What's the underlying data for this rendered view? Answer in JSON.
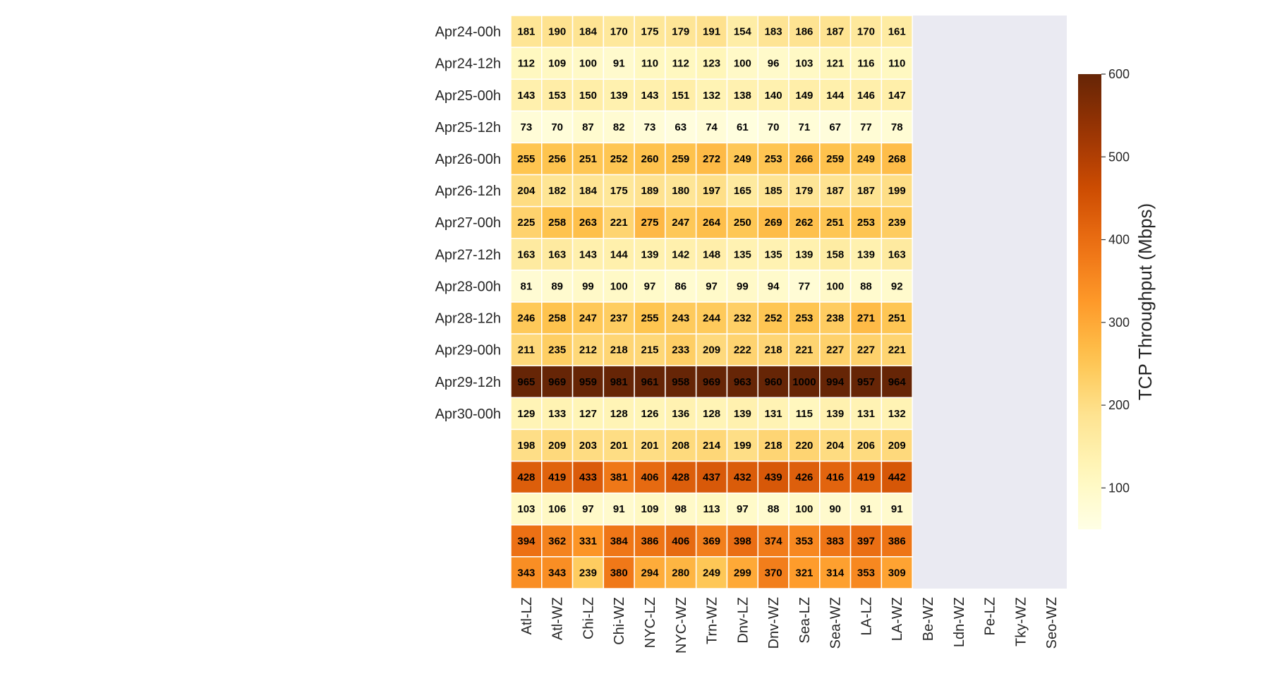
{
  "chart_data": {
    "type": "heatmap",
    "columns": [
      "Atl-LZ",
      "Atl-WZ",
      "Chi-LZ",
      "Chi-WZ",
      "NYC-LZ",
      "NYC-WZ",
      "Trn-WZ",
      "Dnv-LZ",
      "Dnv-WZ",
      "Sea-LZ",
      "Sea-WZ",
      "LA-LZ",
      "LA-WZ",
      "Be-WZ",
      "Ldn-WZ",
      "Pe-LZ",
      "Tky-WZ",
      "Seo-WZ"
    ],
    "row_labels": [
      "Apr24-00h",
      "Apr24-12h",
      "Apr25-00h",
      "Apr25-12h",
      "Apr26-00h",
      "Apr26-12h",
      "Apr27-00h",
      "Apr27-12h",
      "Apr28-00h",
      "Apr28-12h",
      "Apr29-00h",
      "Apr29-12h",
      "Apr30-00h",
      "",
      "",
      "",
      "",
      ""
    ],
    "values": [
      [
        181,
        190,
        184,
        170,
        175,
        179,
        191,
        154,
        183,
        186,
        187,
        170,
        161,
        null,
        null,
        null,
        null,
        null
      ],
      [
        112,
        109,
        100,
        91,
        110,
        112,
        123,
        100,
        96,
        103,
        121,
        116,
        110,
        null,
        null,
        null,
        null,
        null
      ],
      [
        143,
        153,
        150,
        139,
        143,
        151,
        132,
        138,
        140,
        149,
        144,
        146,
        147,
        null,
        null,
        null,
        null,
        null
      ],
      [
        73,
        70,
        87,
        82,
        73,
        63,
        74,
        61,
        70,
        71,
        67,
        77,
        78,
        null,
        null,
        null,
        null,
        null
      ],
      [
        255,
        256,
        251,
        252,
        260,
        259,
        272,
        249,
        253,
        266,
        259,
        249,
        268,
        null,
        null,
        null,
        null,
        null
      ],
      [
        204,
        182,
        184,
        175,
        189,
        180,
        197,
        165,
        185,
        179,
        187,
        187,
        199,
        null,
        null,
        null,
        null,
        null
      ],
      [
        225,
        258,
        263,
        221,
        275,
        247,
        264,
        250,
        269,
        262,
        251,
        253,
        239,
        null,
        null,
        null,
        null,
        null
      ],
      [
        163,
        163,
        143,
        144,
        139,
        142,
        148,
        135,
        135,
        139,
        158,
        139,
        163,
        null,
        null,
        null,
        null,
        null
      ],
      [
        81,
        89,
        99,
        100,
        97,
        86,
        97,
        99,
        94,
        77,
        100,
        88,
        92,
        null,
        null,
        null,
        null,
        null
      ],
      [
        246,
        258,
        247,
        237,
        255,
        243,
        244,
        232,
        252,
        253,
        238,
        271,
        251,
        null,
        null,
        null,
        null,
        null
      ],
      [
        211,
        235,
        212,
        218,
        215,
        233,
        209,
        222,
        218,
        221,
        227,
        227,
        221,
        null,
        null,
        null,
        null,
        null
      ],
      [
        965,
        969,
        959,
        981,
        961,
        958,
        969,
        963,
        960,
        1000,
        994,
        957,
        964,
        null,
        null,
        null,
        null,
        null
      ],
      [
        129,
        133,
        127,
        128,
        126,
        136,
        128,
        139,
        131,
        115,
        139,
        131,
        132,
        null,
        null,
        null,
        null,
        null
      ],
      [
        198,
        209,
        203,
        201,
        201,
        208,
        214,
        199,
        218,
        220,
        204,
        206,
        209,
        null,
        null,
        null,
        null,
        null
      ],
      [
        428,
        419,
        433,
        381,
        406,
        428,
        437,
        432,
        439,
        426,
        416,
        419,
        442,
        null,
        null,
        null,
        null,
        null
      ],
      [
        103,
        106,
        97,
        91,
        109,
        98,
        113,
        97,
        88,
        100,
        90,
        91,
        91,
        null,
        null,
        null,
        null,
        null
      ],
      [
        394,
        362,
        331,
        384,
        386,
        406,
        369,
        398,
        374,
        353,
        383,
        397,
        386,
        null,
        null,
        null,
        null,
        null
      ],
      [
        343,
        343,
        239,
        380,
        294,
        280,
        249,
        299,
        370,
        321,
        314,
        353,
        309,
        null,
        null,
        null,
        null,
        null
      ]
    ],
    "colorbar": {
      "label": "TCP Throughput (Mbps)",
      "ticks": [
        100,
        200,
        300,
        400,
        500,
        600
      ],
      "range": [
        50,
        600
      ],
      "colormap": "YlOrBr"
    },
    "missing_color": "#eaeaf2",
    "grid": false,
    "legend": "right"
  }
}
